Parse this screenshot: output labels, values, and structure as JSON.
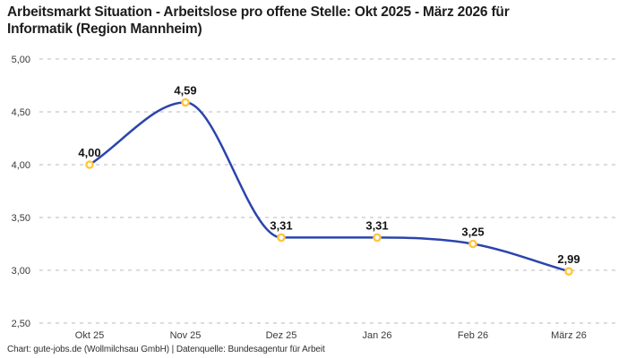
{
  "header": {
    "title": "Arbeitsmarkt Situation - Arbeitslose pro offene Stelle: Okt 2025 - März 2026 für Informatik (Region Mannheim)",
    "title_lines": [
      "Arbeitsmarkt Situation - Arbeitslose pro offene Stelle: Okt 2025 - März 2026 für",
      "Informatik (Region Mannheim)"
    ]
  },
  "chart_data": {
    "type": "line",
    "title": "Arbeitsmarkt Situation - Arbeitslose pro offene Stelle: Okt 2025 - März 2026 für Informatik (Region Mannheim)",
    "categories": [
      "Okt 25",
      "Nov 25",
      "Dez 25",
      "Jan 26",
      "Feb 26",
      "März 26"
    ],
    "values": [
      4.0,
      4.59,
      3.31,
      3.31,
      3.25,
      2.99
    ],
    "point_labels": [
      "4,00",
      "4,59",
      "3,31",
      "3,31",
      "3,25",
      "2,99"
    ],
    "xlabel": "",
    "ylabel": "",
    "ylim": [
      2.5,
      5.0
    ],
    "y_ticks": [
      5.0,
      4.5,
      4.0,
      3.5,
      3.0,
      2.5
    ],
    "y_tick_labels": [
      "5,00",
      "4,50",
      "4,00",
      "3,50",
      "3,00",
      "2,50"
    ],
    "grid": "horizontal-dashed",
    "legend": "none",
    "curve": "smooth-monotone",
    "colors": {
      "line": "#2b44ad",
      "marker_stroke": "#ffc53d",
      "marker_fill": "#ffffff",
      "grid": "#b9b9b9",
      "axis_text": "#3a3a3a",
      "point_label_text": "#141414",
      "title_text": "#1d1d1d"
    }
  },
  "footer": {
    "credit": "Chart: gute-jobs.de (Wollmilchsau GmbH) | Datenquelle: Bundesagentur für Arbeit"
  }
}
